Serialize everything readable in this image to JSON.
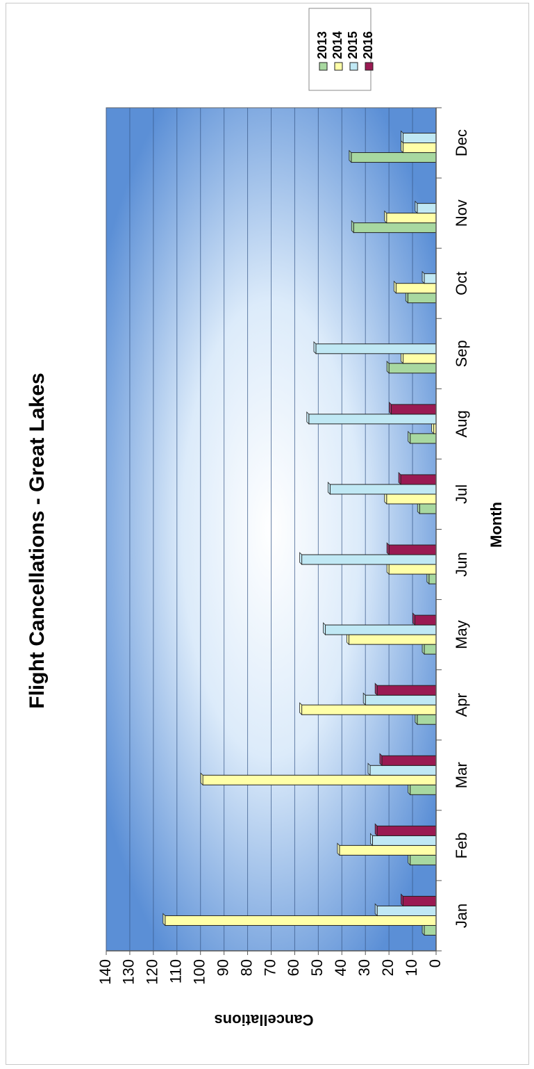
{
  "chart_data": {
    "type": "bar",
    "title": "Flight Cancellations - Great Lakes",
    "xlabel": "Month",
    "ylabel": "Cancellations",
    "categories": [
      "Jan",
      "Feb",
      "Mar",
      "Apr",
      "May",
      "Jun",
      "Jul",
      "Aug",
      "Sep",
      "Oct",
      "Nov",
      "Dec"
    ],
    "series": [
      {
        "name": "2013",
        "color": "#a8d8a0",
        "values": [
          5,
          11,
          11,
          8,
          5,
          3,
          7,
          11,
          20,
          12,
          35,
          36
        ]
      },
      {
        "name": "2014",
        "color": "#ffffa8",
        "values": [
          115,
          41,
          99,
          57,
          37,
          20,
          21,
          1,
          14,
          17,
          21,
          14
        ]
      },
      {
        "name": "2015",
        "color": "#c0e8f4",
        "values": [
          25,
          27,
          28,
          30,
          47,
          57,
          45,
          54,
          51,
          5,
          8,
          14
        ]
      },
      {
        "name": "2016",
        "color": "#9a1a52",
        "values": [
          14,
          25,
          23,
          25,
          9,
          20,
          15,
          19,
          null,
          null,
          null,
          null
        ]
      }
    ],
    "ylim": [
      0,
      140
    ],
    "yticks": [
      0,
      10,
      20,
      30,
      40,
      50,
      60,
      70,
      80,
      90,
      100,
      110,
      120,
      130,
      140
    ],
    "grid": true,
    "orientation": "vertical bars, figure rotated 90° counter-clockwise on the page",
    "plot_background": "#5b8fd6",
    "legend_position": "top-right"
  }
}
